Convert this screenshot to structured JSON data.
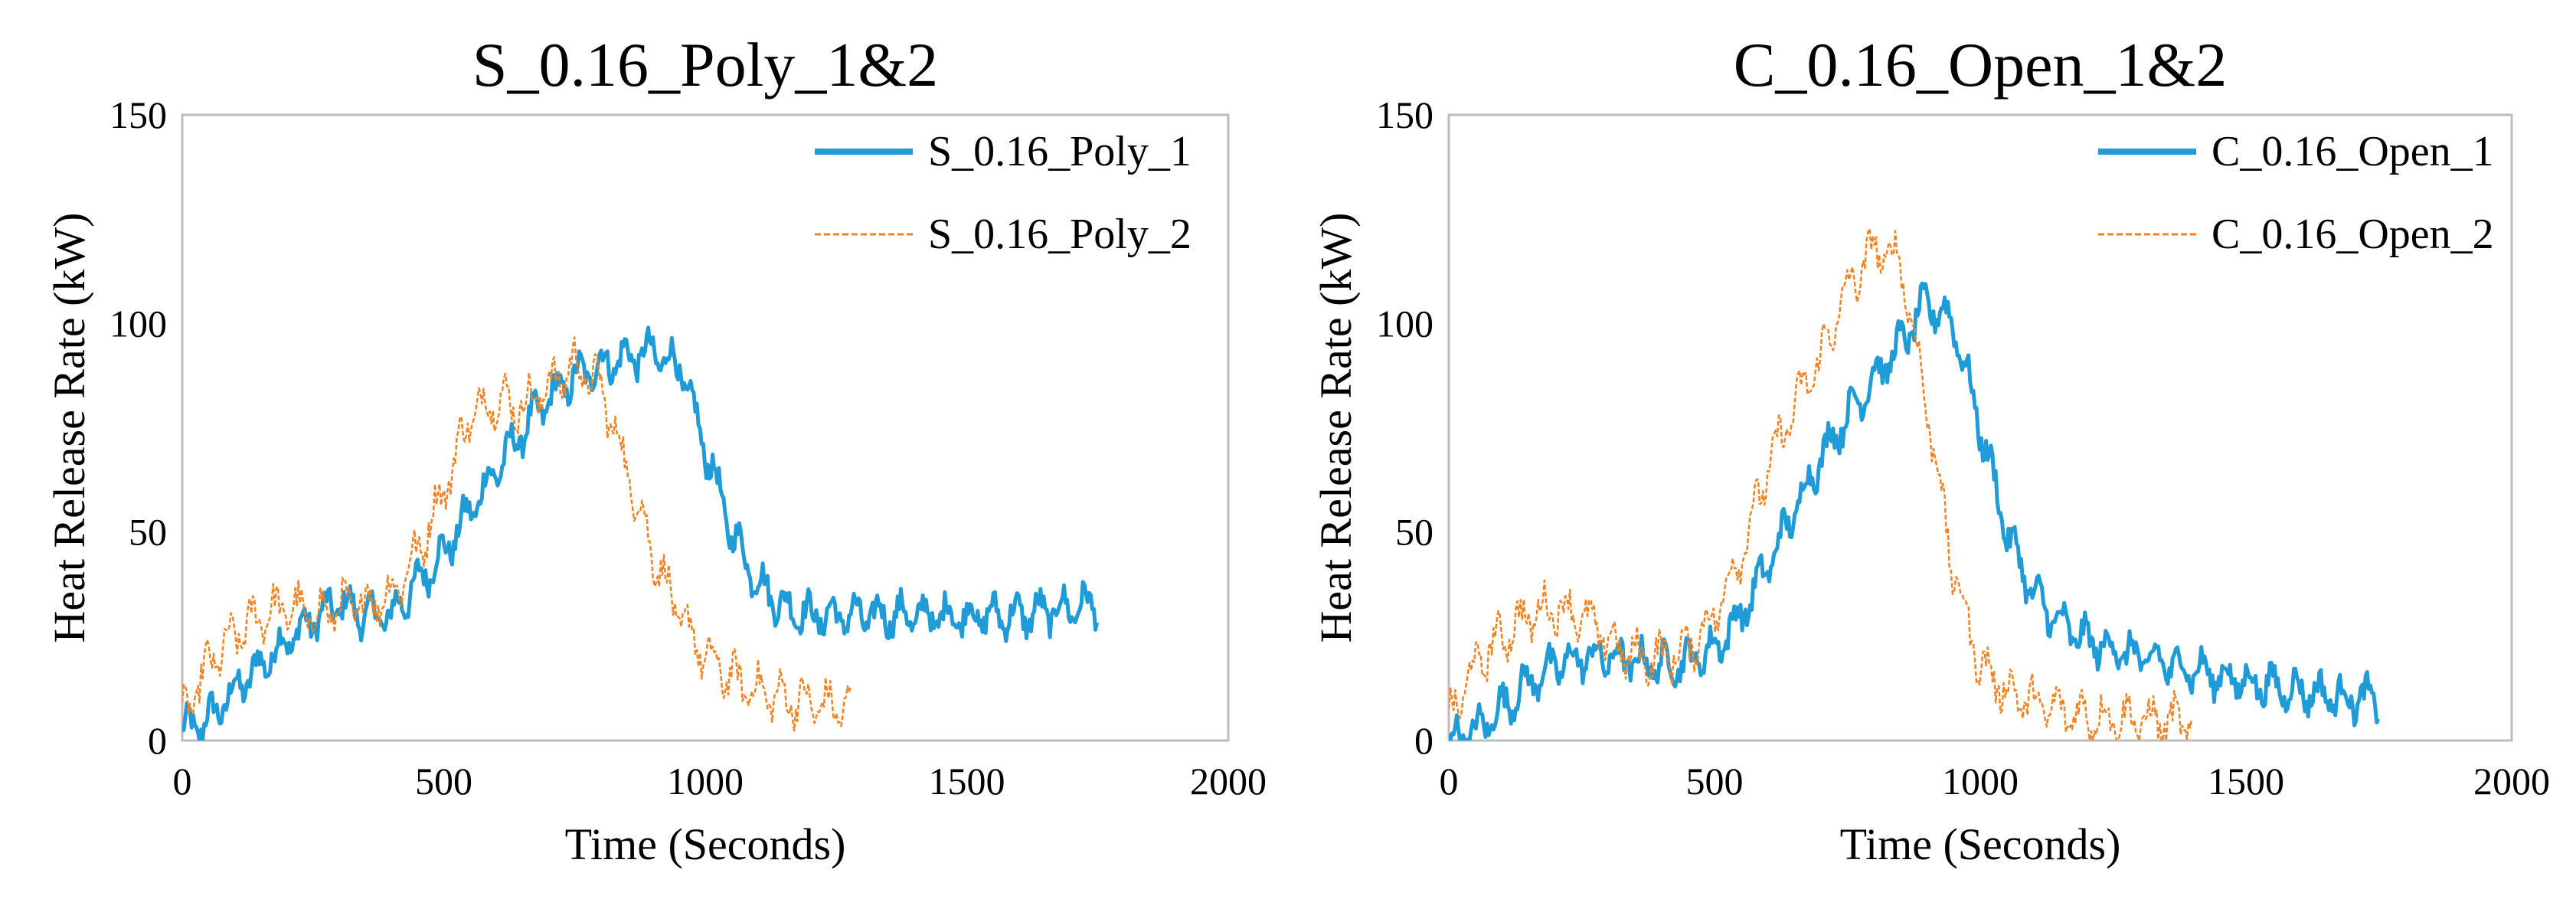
{
  "chart_data": [
    {
      "type": "line",
      "title": "S_0.16_Poly_1&2",
      "xlabel": "Time (Seconds)",
      "ylabel": "Heat Release Rate (kW)",
      "xlim": [
        0,
        2000
      ],
      "ylim": [
        0,
        150
      ],
      "xticks": [
        0,
        500,
        1000,
        1500,
        2000
      ],
      "yticks": [
        0,
        50,
        100,
        150
      ],
      "grid": false,
      "legend_position": "top-right",
      "series": [
        {
          "name": "S_0.16_Poly_1",
          "color": "#1f9bd7",
          "style": "solid",
          "noise_amplitude": 6,
          "x": [
            0,
            50,
            100,
            150,
            200,
            250,
            300,
            350,
            400,
            450,
            500,
            550,
            600,
            650,
            700,
            750,
            800,
            850,
            900,
            950,
            1000,
            1050,
            1100,
            1150,
            1200,
            1300,
            1400,
            1500,
            1600,
            1700,
            1750
          ],
          "values": [
            2,
            5,
            12,
            18,
            24,
            29,
            33,
            30,
            30,
            38,
            45,
            55,
            65,
            74,
            82,
            87,
            90,
            92,
            93,
            90,
            70,
            50,
            38,
            32,
            30,
            30,
            30,
            30,
            30,
            32,
            33
          ]
        },
        {
          "name": "S_0.16_Poly_2",
          "color": "#f58220",
          "style": "dashed",
          "noise_amplitude": 7,
          "x": [
            0,
            50,
            100,
            150,
            200,
            250,
            300,
            350,
            400,
            450,
            500,
            550,
            600,
            650,
            700,
            750,
            800,
            850,
            900,
            950,
            1000,
            1050,
            1100,
            1150,
            1200,
            1250,
            1280
          ],
          "values": [
            5,
            18,
            25,
            30,
            32,
            30,
            32,
            33,
            35,
            45,
            60,
            78,
            82,
            80,
            85,
            90,
            85,
            65,
            45,
            30,
            20,
            15,
            12,
            10,
            9,
            8,
            8
          ]
        }
      ]
    },
    {
      "type": "line",
      "title": "C_0.16_Open_1&2",
      "xlabel": "Time (Seconds)",
      "ylabel": "Heat Release Rate (kW)",
      "xlim": [
        0,
        2000
      ],
      "ylim": [
        0,
        150
      ],
      "xticks": [
        0,
        500,
        1000,
        1500,
        2000
      ],
      "yticks": [
        0,
        50,
        100,
        150
      ],
      "grid": false,
      "legend_position": "top-right",
      "series": [
        {
          "name": "C_0.16_Open_1",
          "color": "#1f9bd7",
          "style": "solid",
          "noise_amplitude": 6,
          "x": [
            0,
            50,
            100,
            150,
            200,
            250,
            300,
            350,
            400,
            450,
            500,
            550,
            600,
            650,
            700,
            750,
            800,
            850,
            900,
            950,
            1000,
            1050,
            1100,
            1150,
            1200,
            1300,
            1400,
            1500,
            1600,
            1700,
            1750
          ],
          "values": [
            0,
            2,
            8,
            14,
            18,
            20,
            20,
            19,
            18,
            19,
            22,
            30,
            42,
            55,
            68,
            78,
            87,
            95,
            105,
            100,
            75,
            50,
            35,
            28,
            24,
            20,
            17,
            14,
            12,
            10,
            10
          ]
        },
        {
          "name": "C_0.16_Open_2",
          "color": "#f58220",
          "style": "dashed",
          "noise_amplitude": 7,
          "x": [
            0,
            50,
            100,
            150,
            200,
            250,
            300,
            350,
            400,
            450,
            500,
            550,
            600,
            650,
            700,
            750,
            800,
            850,
            900,
            950,
            1000,
            1050,
            1100,
            1150,
            1200,
            1300,
            1400
          ],
          "values": [
            5,
            18,
            25,
            30,
            32,
            30,
            24,
            20,
            20,
            22,
            30,
            45,
            65,
            80,
            92,
            108,
            118,
            115,
            80,
            40,
            18,
            12,
            9,
            7,
            6,
            5,
            4
          ]
        }
      ]
    }
  ]
}
